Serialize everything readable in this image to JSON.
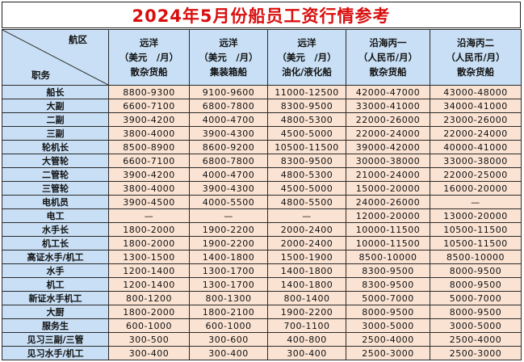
{
  "title": "2024年5月份船员工资行情参考",
  "header": {
    "corner_top": "航区",
    "corner_bottom": "职务",
    "columns": [
      {
        "line1": "远洋",
        "line2": "（美元　/月）",
        "line3": "散杂货船"
      },
      {
        "line1": "远洋",
        "line2": "（美元　/月）",
        "line3": "集装箱船"
      },
      {
        "line1": "远洋",
        "line2": "（美元　/月）",
        "line3": "油化/液化船"
      },
      {
        "line1": "沿海丙一",
        "line2": "（人民币/月）",
        "line3": "散杂货船"
      },
      {
        "line1": "沿海丙二",
        "line2": "（人民币/月）",
        "line3": "散杂货船"
      }
    ]
  },
  "rows": [
    {
      "position": "船长",
      "values": [
        "8800-9300",
        "9100-9600",
        "11000-12500",
        "42000-47000",
        "43000-48000"
      ]
    },
    {
      "position": "大副",
      "values": [
        "6600-7100",
        "6800-7800",
        "8300-9500",
        "33000-41000",
        "34000-41000"
      ]
    },
    {
      "position": "二副",
      "values": [
        "3900-4200",
        "4000-4700",
        "4800-5300",
        "22000-26000",
        "23000-26000"
      ]
    },
    {
      "position": "三副",
      "values": [
        "3800-4000",
        "3900-4300",
        "4500-5000",
        "22000-24000",
        "22000-24000"
      ]
    },
    {
      "position": "轮机长",
      "values": [
        "8500-8900",
        "8600-9200",
        "10500-11500",
        "39000-42000",
        "40000-41000"
      ]
    },
    {
      "position": "大管轮",
      "values": [
        "6600-7100",
        "6800-7800",
        "8300-9500",
        "30000-38000",
        "33000-38000"
      ]
    },
    {
      "position": "二管轮",
      "values": [
        "3900-4200",
        "4000-4700",
        "4800-5300",
        "21000-24000",
        "22000-25000"
      ]
    },
    {
      "position": "三管轮",
      "values": [
        "3800-4000",
        "3900-4300",
        "4500-5000",
        "15000-20000",
        "16000-20000"
      ]
    },
    {
      "position": "电机员",
      "values": [
        "3900-4500",
        "4000-5500",
        "4800-5500",
        "24000-26000",
        "—"
      ]
    },
    {
      "position": "电工",
      "values": [
        "—",
        "—",
        "—",
        "12000-20000",
        "13000-20000"
      ]
    },
    {
      "position": "水手长",
      "values": [
        "1800-2000",
        "1900-2200",
        "2000-2400",
        "10000-11500",
        "10500-11500"
      ]
    },
    {
      "position": "机工长",
      "values": [
        "1800-2000",
        "1900-2200",
        "2000-2400",
        "10000-11500",
        "10500-11500"
      ]
    },
    {
      "position": "高证水手/机工",
      "values": [
        "1300-1500",
        "1400-1800",
        "1500-1900",
        "8500-10000",
        "8500-10000"
      ]
    },
    {
      "position": "水手",
      "values": [
        "1200-1400",
        "1300-1700",
        "1400-1800",
        "8300-9500",
        "8000-9500"
      ]
    },
    {
      "position": "机工",
      "values": [
        "1200-1400",
        "1300-1700",
        "1400-1800",
        "8300-9500",
        "8000-9500"
      ]
    },
    {
      "position": "新证水手机工",
      "values": [
        "800-1200",
        "800-1300",
        "800-1400",
        "5000-7000",
        "5000-7000"
      ]
    },
    {
      "position": "大厨",
      "values": [
        "1800-2000",
        "1800-2100",
        "1900-2200",
        "8000-9500",
        "8000-9500"
      ]
    },
    {
      "position": "服务生",
      "values": [
        "600-1000",
        "600-1000",
        "700-1100",
        "3000-5000",
        "3000-5000"
      ]
    },
    {
      "position": "见习三副/三管",
      "values": [
        "300-500",
        "300-600",
        "400-800",
        "2500-4000",
        "2500-4000"
      ]
    },
    {
      "position": "见习水手/机工",
      "values": [
        "300-400",
        "300-400",
        "300-400",
        "2500-3000",
        "2500-3000"
      ]
    }
  ],
  "colors": {
    "title": "#d90f0f",
    "header_bg": "#c8dff5",
    "position_bg": "#c8dff5",
    "value_bg": "#fbe3d3",
    "border": "#2a2a2a"
  }
}
